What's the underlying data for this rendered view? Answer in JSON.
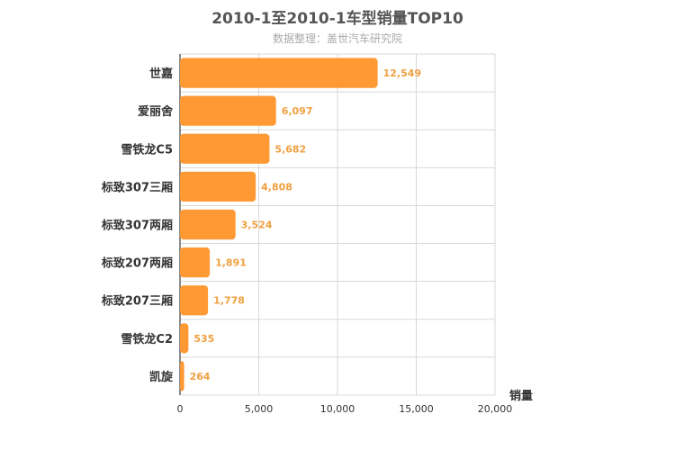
{
  "chart_data": {
    "type": "bar",
    "orientation": "horizontal",
    "title": "2010-1至2010-1车型销量TOP10",
    "subtitle": "数据整理：盖世汽车研究院",
    "categories": [
      "世嘉",
      "爱丽舍",
      "雪铁龙C5",
      "标致307三厢",
      "标致307两厢",
      "标致207两厢",
      "标致207三厢",
      "雪铁龙C2",
      "凯旋"
    ],
    "values": [
      12549,
      6097,
      5682,
      4808,
      3524,
      1891,
      1778,
      535,
      264
    ],
    "value_labels": [
      "12,549",
      "6,097",
      "5,682",
      "4,808",
      "3,524",
      "1,891",
      "1,778",
      "535",
      "264"
    ],
    "xlabel": "销量",
    "ylabel": "",
    "xlim": [
      0,
      20000
    ],
    "xticks": [
      0,
      5000,
      10000,
      15000,
      20000
    ],
    "xtick_labels": [
      "0",
      "5,000",
      "10,000",
      "15,000",
      "20,000"
    ],
    "grid": true,
    "bar_color": "#ff9933",
    "label_color": "#f0a040"
  }
}
